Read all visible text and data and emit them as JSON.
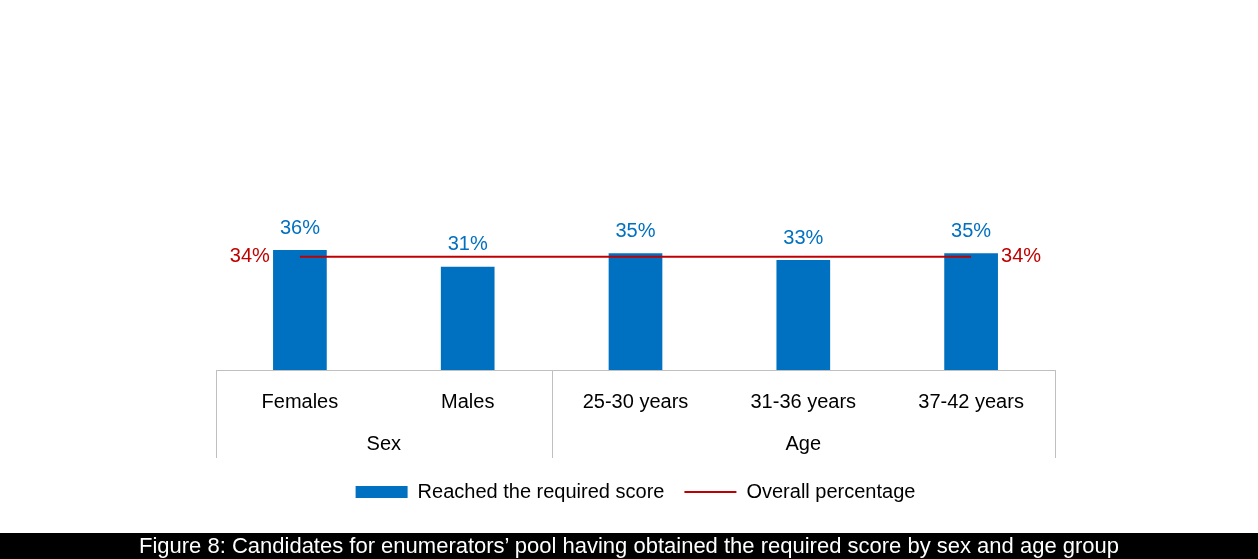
{
  "chart_data": {
    "type": "bar",
    "title": "Figure 8: Candidates for enumerators’ pool having obtained the required score by sex and age group",
    "categories": [
      "Females",
      "Males",
      "25-30 years",
      "31-36 years",
      "37-42 years"
    ],
    "series": [
      {
        "name": "Reached the required score",
        "color": "#0070c0",
        "values": [
          36,
          31,
          35,
          33,
          35
        ],
        "value_labels": [
          "36%",
          "31%",
          "35%",
          "33%",
          "35%"
        ]
      },
      {
        "name": "Overall percentage",
        "type": "line",
        "color": "#c00000",
        "values": [
          34,
          34,
          34,
          34,
          34
        ],
        "value_labels": [
          "34%",
          null,
          null,
          null,
          "34%"
        ]
      }
    ],
    "annotations": [
      "Sex",
      "Age"
    ],
    "grid": false,
    "legend": "bottom",
    "marker": "none"
  }
}
